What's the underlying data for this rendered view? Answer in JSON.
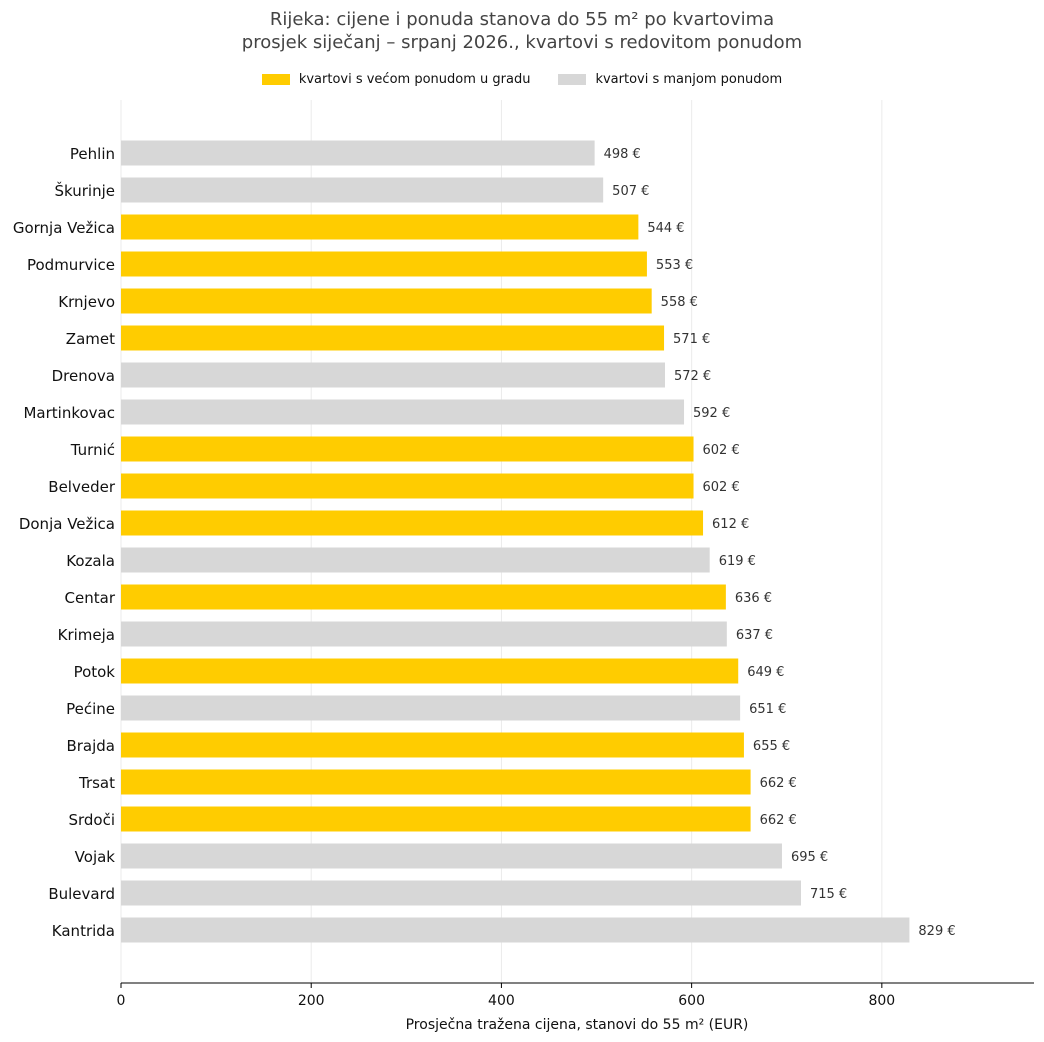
{
  "chart_data": {
    "type": "bar",
    "orientation": "horizontal",
    "title": "Rijeka: cijene i ponuda stanova do 55 m² po kvartovima",
    "subtitle": "prosjek siječanj – srpanj 2026., kvartovi s redovitom ponudom",
    "xlabel": "Prosječna tražena cijena, stanovi do 55 m² (EUR)",
    "ylabel": "",
    "xlim": [
      0,
      960
    ],
    "xticks": [
      0,
      200,
      400,
      600,
      800
    ],
    "grid": "vertical",
    "legend_position": "top-center",
    "value_suffix": " €",
    "legend": [
      {
        "label": "kvartovi s većom ponudom u gradu",
        "color": "#FFCC00"
      },
      {
        "label": "kvartovi s manjom ponudom",
        "color": "#D7D7D7"
      }
    ],
    "bars": [
      {
        "category": "Pehlin",
        "value": 498,
        "group": "manja"
      },
      {
        "category": "Škurinje",
        "value": 507,
        "group": "manja"
      },
      {
        "category": "Gornja Vežica",
        "value": 544,
        "group": "veca"
      },
      {
        "category": "Podmurvice",
        "value": 553,
        "group": "veca"
      },
      {
        "category": "Krnjevo",
        "value": 558,
        "group": "veca"
      },
      {
        "category": "Zamet",
        "value": 571,
        "group": "veca"
      },
      {
        "category": "Drenova",
        "value": 572,
        "group": "manja"
      },
      {
        "category": "Martinkovac",
        "value": 592,
        "group": "manja"
      },
      {
        "category": "Turnić",
        "value": 602,
        "group": "veca"
      },
      {
        "category": "Belveder",
        "value": 602,
        "group": "veca"
      },
      {
        "category": "Donja Vežica",
        "value": 612,
        "group": "veca"
      },
      {
        "category": "Kozala",
        "value": 619,
        "group": "manja"
      },
      {
        "category": "Centar",
        "value": 636,
        "group": "veca"
      },
      {
        "category": "Krimeja",
        "value": 637,
        "group": "manja"
      },
      {
        "category": "Potok",
        "value": 649,
        "group": "veca"
      },
      {
        "category": "Pećine",
        "value": 651,
        "group": "manja"
      },
      {
        "category": "Brajda",
        "value": 655,
        "group": "veca"
      },
      {
        "category": "Trsat",
        "value": 662,
        "group": "veca"
      },
      {
        "category": "Srdoči",
        "value": 662,
        "group": "veca"
      },
      {
        "category": "Vojak",
        "value": 695,
        "group": "manja"
      },
      {
        "category": "Bulevard",
        "value": 715,
        "group": "manja"
      },
      {
        "category": "Kantrida",
        "value": 829,
        "group": "manja"
      }
    ],
    "group_colors": {
      "veca": "#FFCC00",
      "manja": "#D7D7D7"
    }
  }
}
